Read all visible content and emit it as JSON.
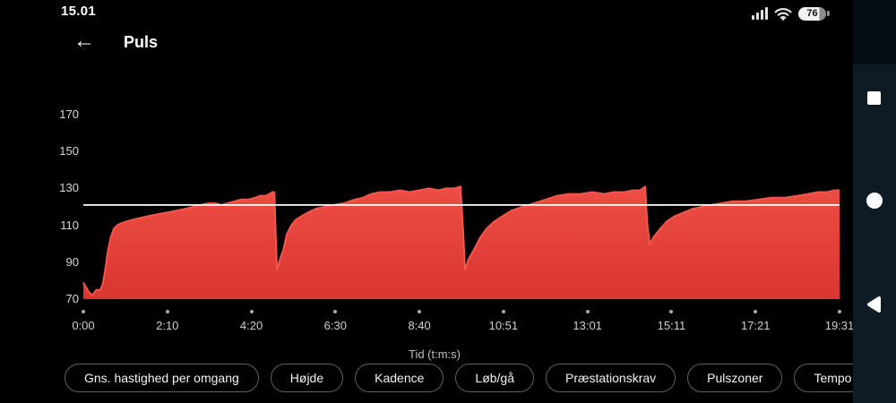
{
  "status_bar": {
    "time": "15.01",
    "battery_percent": "76",
    "icons": [
      "signal-bars-icon",
      "wifi-icon",
      "battery-icon"
    ]
  },
  "header": {
    "back_icon": "←",
    "title": "Puls"
  },
  "chart_data": {
    "type": "area",
    "title": "Puls",
    "xlabel": "Tid (t:m:s)",
    "ylabel": "",
    "unit": "bpm",
    "grid": false,
    "x_tick_labels": [
      "0:00",
      "2:10",
      "4:20",
      "6:30",
      "8:40",
      "10:51",
      "13:01",
      "15:11",
      "17:21",
      "19:31"
    ],
    "x_total_seconds": 1171,
    "y_ticks": [
      70,
      90,
      110,
      130,
      150,
      170
    ],
    "ylim": [
      70,
      178
    ],
    "average_line_bpm": 121,
    "colors": {
      "area_top": "#ed4e44",
      "area_bottom": "#da3531",
      "stroke": "#f3564a",
      "average_line": "#ffffff"
    },
    "series": [
      {
        "name": "Puls",
        "points": [
          [
            0,
            79
          ],
          [
            8,
            74
          ],
          [
            14,
            72
          ],
          [
            20,
            75
          ],
          [
            26,
            75
          ],
          [
            30,
            78
          ],
          [
            34,
            86
          ],
          [
            38,
            96
          ],
          [
            42,
            103
          ],
          [
            47,
            108
          ],
          [
            52,
            110
          ],
          [
            58,
            111
          ],
          [
            66,
            112
          ],
          [
            76,
            113
          ],
          [
            88,
            114
          ],
          [
            100,
            115
          ],
          [
            115,
            116
          ],
          [
            130,
            117
          ],
          [
            145,
            118
          ],
          [
            158,
            119
          ],
          [
            170,
            120
          ],
          [
            182,
            121
          ],
          [
            194,
            122
          ],
          [
            205,
            122
          ],
          [
            214,
            121
          ],
          [
            224,
            122
          ],
          [
            234,
            123
          ],
          [
            244,
            124
          ],
          [
            256,
            124
          ],
          [
            266,
            125
          ],
          [
            274,
            126
          ],
          [
            282,
            126
          ],
          [
            288,
            127
          ],
          [
            293,
            128
          ],
          [
            296,
            128
          ],
          [
            298,
            103
          ],
          [
            300,
            86
          ],
          [
            304,
            91
          ],
          [
            310,
            97
          ],
          [
            315,
            105
          ],
          [
            322,
            110
          ],
          [
            329,
            113
          ],
          [
            338,
            115
          ],
          [
            348,
            117
          ],
          [
            360,
            119
          ],
          [
            373,
            120
          ],
          [
            388,
            121
          ],
          [
            404,
            122
          ],
          [
            420,
            124
          ],
          [
            433,
            125
          ],
          [
            446,
            127
          ],
          [
            460,
            128
          ],
          [
            475,
            128
          ],
          [
            490,
            129
          ],
          [
            505,
            128
          ],
          [
            520,
            129
          ],
          [
            535,
            130
          ],
          [
            550,
            129
          ],
          [
            562,
            130
          ],
          [
            574,
            130
          ],
          [
            584,
            131
          ],
          [
            588,
            108
          ],
          [
            591,
            86
          ],
          [
            597,
            92
          ],
          [
            605,
            97
          ],
          [
            614,
            103
          ],
          [
            624,
            108
          ],
          [
            636,
            112
          ],
          [
            649,
            115
          ],
          [
            663,
            118
          ],
          [
            680,
            120
          ],
          [
            698,
            122
          ],
          [
            716,
            124
          ],
          [
            734,
            126
          ],
          [
            752,
            127
          ],
          [
            770,
            127
          ],
          [
            788,
            128
          ],
          [
            806,
            127
          ],
          [
            822,
            128
          ],
          [
            838,
            128
          ],
          [
            852,
            129
          ],
          [
            862,
            129
          ],
          [
            870,
            131
          ],
          [
            873,
            112
          ],
          [
            877,
            100
          ],
          [
            884,
            104
          ],
          [
            893,
            108
          ],
          [
            903,
            112
          ],
          [
            916,
            115
          ],
          [
            930,
            117
          ],
          [
            944,
            119
          ],
          [
            958,
            120
          ],
          [
            972,
            121
          ],
          [
            988,
            122
          ],
          [
            1006,
            123
          ],
          [
            1026,
            123
          ],
          [
            1046,
            124
          ],
          [
            1066,
            125
          ],
          [
            1086,
            125
          ],
          [
            1106,
            126
          ],
          [
            1122,
            127
          ],
          [
            1138,
            128
          ],
          [
            1152,
            128
          ],
          [
            1163,
            129
          ],
          [
            1171,
            129
          ]
        ]
      }
    ]
  },
  "buttons": [
    "Gns. hastighed per omgang",
    "Højde",
    "Kadence",
    "Løb/gå",
    "Præstationskrav",
    "Pulszoner",
    "Tempo"
  ],
  "nav_bar": {
    "recents": "square-icon",
    "home": "circle-icon",
    "back": "triangle-left-icon"
  }
}
